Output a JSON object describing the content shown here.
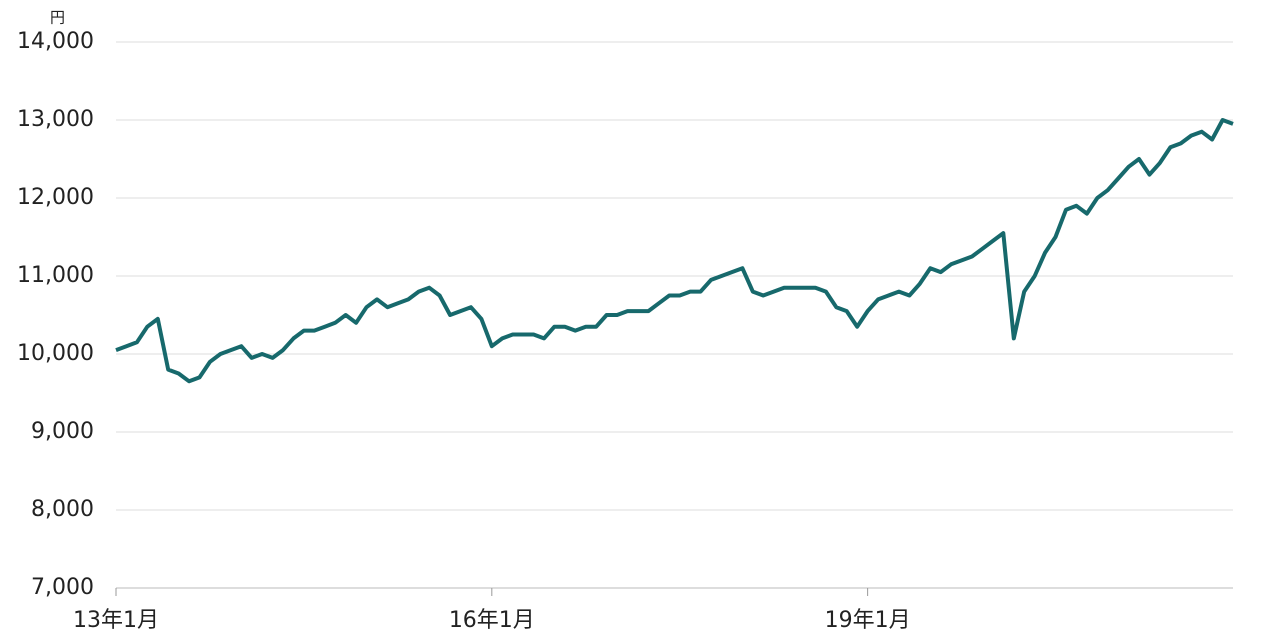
{
  "chart_data": {
    "type": "line",
    "y_label": "円",
    "x": [
      "2013-01",
      "2013-02",
      "2013-03",
      "2013-04",
      "2013-05",
      "2013-06",
      "2013-07",
      "2013-08",
      "2013-09",
      "2013-10",
      "2013-11",
      "2013-12",
      "2014-01",
      "2014-02",
      "2014-03",
      "2014-04",
      "2014-05",
      "2014-06",
      "2014-07",
      "2014-08",
      "2014-09",
      "2014-10",
      "2014-11",
      "2014-12",
      "2015-01",
      "2015-02",
      "2015-03",
      "2015-04",
      "2015-05",
      "2015-06",
      "2015-07",
      "2015-08",
      "2015-09",
      "2015-10",
      "2015-11",
      "2015-12",
      "2016-01",
      "2016-02",
      "2016-03",
      "2016-04",
      "2016-05",
      "2016-06",
      "2016-07",
      "2016-08",
      "2016-09",
      "2016-10",
      "2016-11",
      "2016-12",
      "2017-01",
      "2017-02",
      "2017-03",
      "2017-04",
      "2017-05",
      "2017-06",
      "2017-07",
      "2017-08",
      "2017-09",
      "2017-10",
      "2017-11",
      "2017-12",
      "2018-01",
      "2018-02",
      "2018-03",
      "2018-04",
      "2018-05",
      "2018-06",
      "2018-07",
      "2018-08",
      "2018-09",
      "2018-10",
      "2018-11",
      "2018-12",
      "2019-01",
      "2019-02",
      "2019-03",
      "2019-04",
      "2019-05",
      "2019-06",
      "2019-07",
      "2019-08",
      "2019-09",
      "2019-10",
      "2019-11",
      "2019-12",
      "2020-01",
      "2020-02",
      "2020-03",
      "2020-04",
      "2020-05",
      "2020-06",
      "2020-07",
      "2020-08",
      "2020-09",
      "2020-10",
      "2020-11",
      "2020-12",
      "2021-01",
      "2021-02",
      "2021-03",
      "2021-04",
      "2021-05",
      "2021-06",
      "2021-07",
      "2021-08",
      "2021-09",
      "2021-10",
      "2021-11",
      "2021-12"
    ],
    "series": [
      {
        "color": "#17696c",
        "values": [
          10050,
          10100,
          10150,
          10350,
          10450,
          9800,
          9750,
          9650,
          9700,
          9900,
          10000,
          10050,
          10100,
          9950,
          10000,
          9950,
          10050,
          10200,
          10300,
          10300,
          10350,
          10400,
          10500,
          10400,
          10600,
          10700,
          10600,
          10650,
          10700,
          10800,
          10850,
          10750,
          10500,
          10550,
          10600,
          10450,
          10100,
          10200,
          10250,
          10250,
          10250,
          10200,
          10350,
          10350,
          10300,
          10350,
          10350,
          10500,
          10500,
          10550,
          10550,
          10550,
          10650,
          10750,
          10750,
          10800,
          10800,
          10950,
          11000,
          11050,
          11100,
          10800,
          10750,
          10800,
          10850,
          10850,
          10850,
          10850,
          10800,
          10600,
          10550,
          10350,
          10550,
          10700,
          10750,
          10800,
          10750,
          10900,
          11100,
          11050,
          11150,
          11200,
          11250,
          11350,
          11450,
          11550,
          10200,
          10800,
          11000,
          11300,
          11500,
          11850,
          11900,
          11800,
          12000,
          12100,
          12250,
          12400,
          12500,
          12300,
          12450,
          12650,
          12700,
          12800,
          12850,
          12750,
          13000,
          12950
        ]
      }
    ],
    "xlim": [
      "2013-01",
      "2021-12"
    ],
    "xticks": [
      {
        "value": "2013-01",
        "label": "13年1月"
      },
      {
        "value": "2016-01",
        "label": "16年1月"
      },
      {
        "value": "2019-01",
        "label": "19年1月"
      }
    ],
    "ylim": [
      7000,
      14000
    ],
    "yticks": [
      {
        "value": 7000,
        "label": "7,000"
      },
      {
        "value": 8000,
        "label": "8,000"
      },
      {
        "value": 9000,
        "label": "9,000"
      },
      {
        "value": 10000,
        "label": "10,000"
      },
      {
        "value": 11000,
        "label": "11,000"
      },
      {
        "value": 12000,
        "label": "12,000"
      },
      {
        "value": 13000,
        "label": "13,000"
      },
      {
        "value": 14000,
        "label": "14,000"
      }
    ],
    "grid": true
  }
}
